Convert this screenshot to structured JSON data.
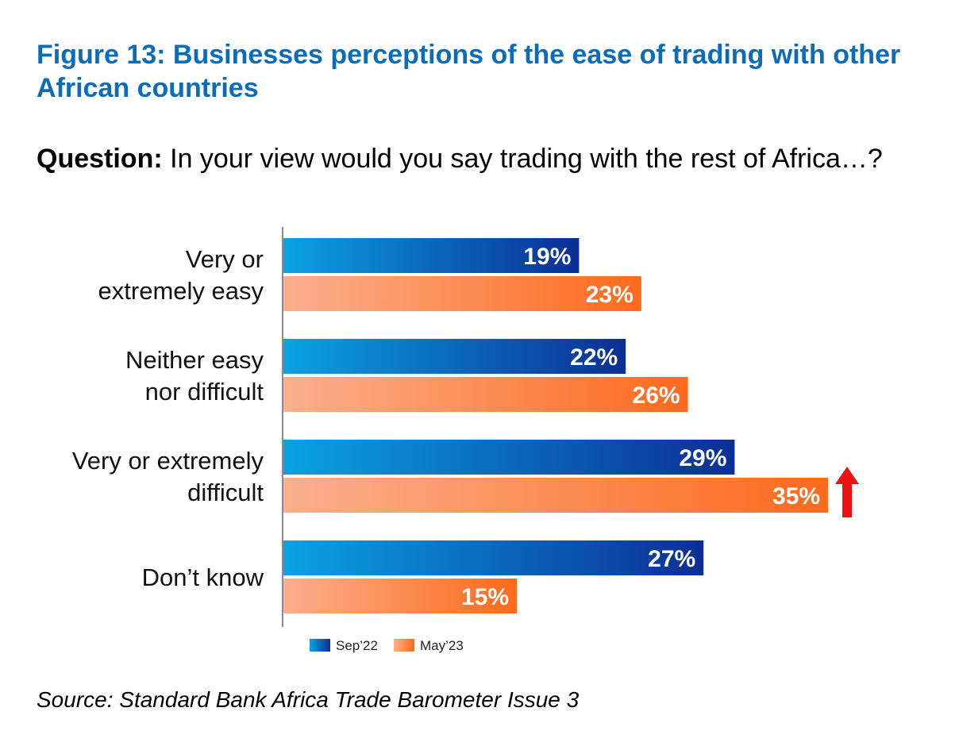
{
  "figure": {
    "title": "Figure 13: Businesses perceptions of the ease of trading with other African countries",
    "question_label": "Question:",
    "question_text": "In your view would you say trading with the rest of Africa…?",
    "source": "Source: Standard Bank Africa Trade Barometer Issue 3"
  },
  "chart_data": {
    "type": "bar",
    "orientation": "horizontal",
    "categories": [
      [
        "Very or",
        "extremely easy"
      ],
      [
        "Neither easy",
        "nor difficult"
      ],
      [
        "Very or extremely",
        "difficult"
      ],
      [
        "Don’t know"
      ]
    ],
    "series": [
      {
        "name": "Sep’22",
        "values": [
          19,
          22,
          29,
          27
        ],
        "color_start": "#0aa2e2",
        "color_end": "#0b2f94"
      },
      {
        "name": "May’23",
        "values": [
          23,
          26,
          35,
          15
        ],
        "color_start": "#fbb08e",
        "color_end": "#fd6a1c"
      }
    ],
    "value_suffix": "%",
    "annotations": [
      {
        "type": "up-arrow",
        "category_index": 2,
        "series_index": 1,
        "color": "#ee1111"
      }
    ],
    "legend_position": "bottom",
    "grid": false,
    "xlim": [
      0,
      35
    ]
  }
}
